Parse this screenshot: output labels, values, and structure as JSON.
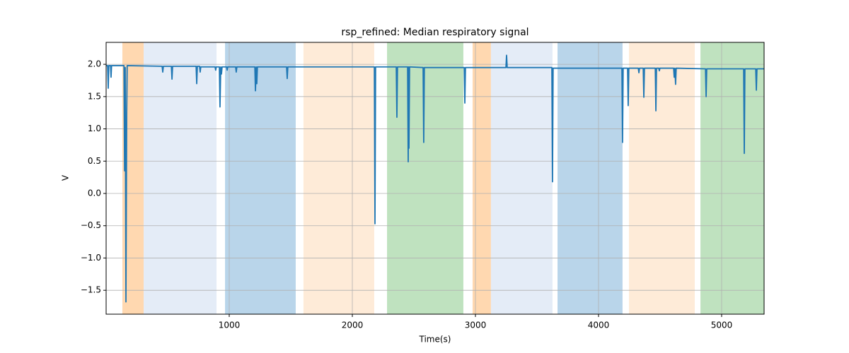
{
  "chart_data": {
    "type": "line",
    "title": "rsp_refined: Median respiratory signal",
    "xlabel": "Time(s)",
    "ylabel": "V",
    "xlim": [
      0,
      5345
    ],
    "ylim": [
      -1.87,
      2.34
    ],
    "xticks": [
      1000,
      2000,
      3000,
      4000,
      5000
    ],
    "yticks": [
      {
        "value": -1.5,
        "label": "−1.5"
      },
      {
        "value": -1.0,
        "label": "−1.0"
      },
      {
        "value": -0.5,
        "label": "−0.5"
      },
      {
        "value": 0,
        "label": "0.0"
      },
      0.5,
      {
        "value": 1.0,
        "label": "1.0"
      },
      1.5,
      {
        "value": 2.0,
        "label": "2.0"
      }
    ],
    "grid": true,
    "spans": [
      {
        "x0": 132,
        "x1": 305,
        "color": "#ffd8b0"
      },
      {
        "x0": 305,
        "x1": 897,
        "color": "#e4ecf7"
      },
      {
        "x0": 966,
        "x1": 1540,
        "color": "#b9d5ea"
      },
      {
        "x0": 1603,
        "x1": 2178,
        "color": "#feebd8"
      },
      {
        "x0": 2282,
        "x1": 2902,
        "color": "#bfe2bf"
      },
      {
        "x0": 2977,
        "x1": 3126,
        "color": "#ffd8b0"
      },
      {
        "x0": 3126,
        "x1": 3626,
        "color": "#e4ecf7"
      },
      {
        "x0": 3667,
        "x1": 4195,
        "color": "#b9d5ea"
      },
      {
        "x0": 4247,
        "x1": 4782,
        "color": "#feebd8"
      },
      {
        "x0": 4828,
        "x1": 5345,
        "color": "#bfe2bf"
      }
    ],
    "series": [
      {
        "color": "#1f77b4",
        "x": [
          0,
          12,
          17,
          22,
          36,
          40,
          44,
          145,
          150,
          155,
          161,
          167,
          171,
          455,
          460,
          465,
          530,
          535,
          540,
          731,
          736,
          741,
          759,
          764,
          769,
          885,
          890,
          895,
          920,
          925,
          931,
          937,
          942,
          978,
          983,
          988,
          1052,
          1057,
          1062,
          1208,
          1213,
          1219,
          1224,
          1229,
          1466,
          1471,
          1476,
          2179,
          2184,
          2189,
          2357,
          2362,
          2367,
          2449,
          2454,
          2457,
          2460,
          2465,
          2575,
          2580,
          2585,
          2909,
          2914,
          2919,
          3248,
          3253,
          3258,
          3621,
          3626,
          3631,
          4190,
          4195,
          4200,
          4236,
          4241,
          4246,
          4323,
          4328,
          4333,
          4363,
          4368,
          4373,
          4461,
          4466,
          4471,
          4489,
          4494,
          4499,
          4610,
          4615,
          4620,
          4626,
          4631,
          4869,
          4874,
          4879,
          5179,
          5184,
          5189,
          5277,
          5282,
          5287,
          5345
        ],
        "values": [
          1.98,
          1.98,
          1.63,
          1.98,
          1.98,
          1.8,
          1.98,
          1.98,
          0.35,
          1.95,
          -1.68,
          1.2,
          1.98,
          1.97,
          1.88,
          1.97,
          1.97,
          1.77,
          1.97,
          1.97,
          1.7,
          1.97,
          1.97,
          1.88,
          1.96,
          1.96,
          1.91,
          1.96,
          1.96,
          1.34,
          1.96,
          1.85,
          1.96,
          1.96,
          1.91,
          1.96,
          1.96,
          1.88,
          1.96,
          1.96,
          1.59,
          1.96,
          1.7,
          1.96,
          1.96,
          1.78,
          1.96,
          1.96,
          -0.47,
          1.96,
          1.96,
          1.18,
          1.96,
          1.96,
          0.49,
          1.96,
          0.7,
          1.96,
          1.95,
          0.79,
          1.95,
          1.95,
          1.4,
          1.95,
          1.95,
          2.14,
          1.95,
          1.95,
          0.18,
          1.94,
          1.94,
          0.79,
          1.94,
          1.94,
          1.36,
          1.94,
          1.94,
          1.87,
          1.94,
          1.94,
          1.49,
          1.94,
          1.94,
          1.28,
          1.94,
          1.94,
          1.9,
          1.94,
          1.94,
          1.8,
          1.94,
          1.69,
          1.94,
          1.93,
          1.5,
          1.93,
          1.93,
          0.62,
          1.93,
          1.93,
          1.6,
          1.93,
          1.93
        ]
      }
    ]
  }
}
